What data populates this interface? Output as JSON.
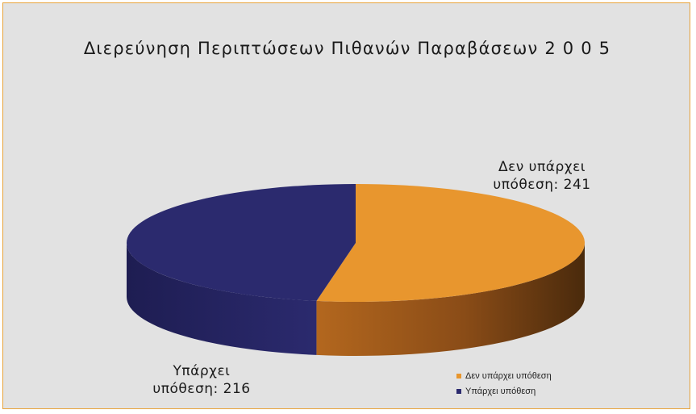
{
  "chart_data": {
    "type": "pie",
    "title": "Διερεύνηση Περιπτώσεων Πιθανών Παραβάσεων 2 0 0 5",
    "slices": [
      {
        "name": "Δεν υπάρχει υπόθεση",
        "value": 241,
        "color": "#e8962e",
        "label_line1": "Δεν υπάρχει",
        "label_line2": "υπόθεση: 241"
      },
      {
        "name": "Υπάρχει υπόθεση",
        "value": 216,
        "color": "#2b2a6e",
        "label_line1": "Υπάρχει",
        "label_line2": "υπόθεση: 216"
      }
    ],
    "legend_position": "bottom-right"
  }
}
